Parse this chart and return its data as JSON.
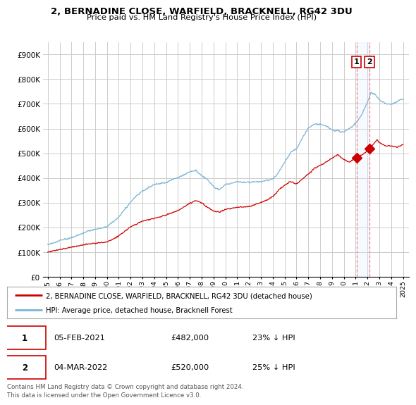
{
  "title": "2, BERNADINE CLOSE, WARFIELD, BRACKNELL, RG42 3DU",
  "subtitle": "Price paid vs. HM Land Registry's House Price Index (HPI)",
  "ylabel_ticks": [
    "£0",
    "£100K",
    "£200K",
    "£300K",
    "£400K",
    "£500K",
    "£600K",
    "£700K",
    "£800K",
    "£900K"
  ],
  "ytick_values": [
    0,
    100000,
    200000,
    300000,
    400000,
    500000,
    600000,
    700000,
    800000,
    900000
  ],
  "ylim": [
    0,
    950000
  ],
  "hpi_color": "#7ab3d4",
  "price_color": "#cc0000",
  "grid_color": "#cccccc",
  "background_color": "#ffffff",
  "shade_color": "#ddeeff",
  "legend_label_price": "2, BERNADINE CLOSE, WARFIELD, BRACKNELL, RG42 3DU (detached house)",
  "legend_label_hpi": "HPI: Average price, detached house, Bracknell Forest",
  "sale1_date": "05-FEB-2021",
  "sale1_price": "£482,000",
  "sale1_hpi": "23% ↓ HPI",
  "sale2_date": "04-MAR-2022",
  "sale2_price": "£520,000",
  "sale2_hpi": "25% ↓ HPI",
  "footnote": "Contains HM Land Registry data © Crown copyright and database right 2024.\nThis data is licensed under the Open Government Licence v3.0.",
  "sale1_year": 2021.08,
  "sale2_year": 2022.17,
  "sale1_price_val": 482000,
  "sale2_price_val": 520000,
  "vline_color": "#ee8888",
  "vline_style": "--"
}
